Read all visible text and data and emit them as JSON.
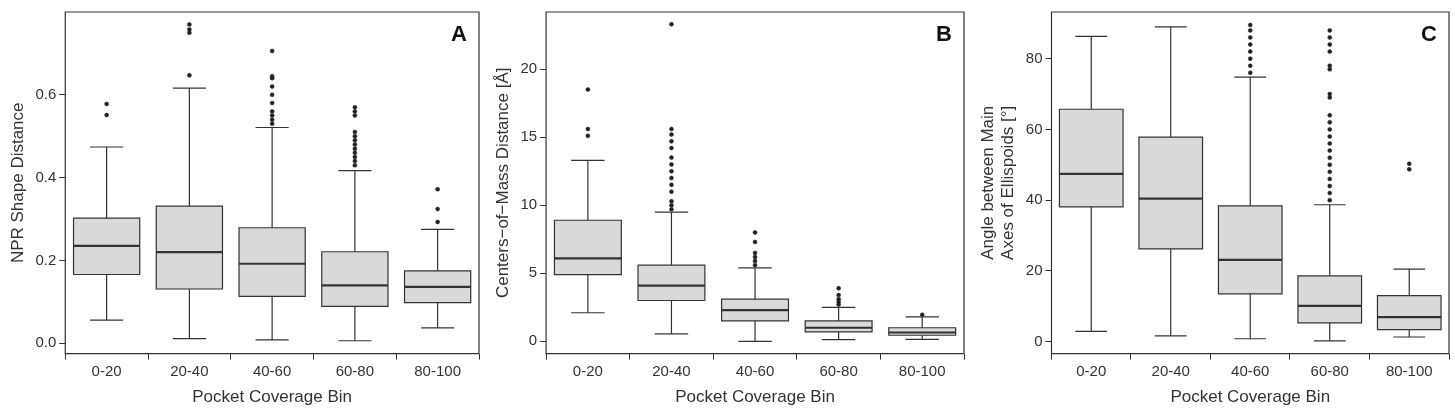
{
  "chart_data": [
    {
      "type": "box",
      "categories": [
        "0-20",
        "20-40",
        "40-60",
        "60-80",
        "80-100"
      ],
      "xlabel": "Pocket Coverage Bin",
      "ylabel": "NPR Shape Distance",
      "color": "#d9d9d9",
      "ylim": [
        -0.025,
        0.8
      ],
      "yticks": [
        {
          "value": 0,
          "label": "0.0"
        },
        0.2,
        0.4,
        0.6
      ],
      "annotations": [
        "A"
      ],
      "boxes": [
        {
          "low": 0.056,
          "q1": 0.166,
          "median": 0.235,
          "q3": 0.302,
          "high": 0.474,
          "outliers": [
            0.551,
            0.578
          ]
        },
        {
          "low": 0.011,
          "q1": 0.131,
          "median": 0.22,
          "q3": 0.331,
          "high": 0.616,
          "outliers": [
            0.647,
            0.75,
            0.758,
            0.77
          ]
        },
        {
          "low": 0.008,
          "q1": 0.113,
          "median": 0.192,
          "q3": 0.279,
          "high": 0.521,
          "outliers": [
            0.53,
            0.54,
            0.55,
            0.56,
            0.58,
            0.6,
            0.62,
            0.64,
            0.645,
            0.706
          ]
        },
        {
          "low": 0.006,
          "q1": 0.089,
          "median": 0.14,
          "q3": 0.221,
          "high": 0.417,
          "outliers": [
            0.43,
            0.44,
            0.45,
            0.46,
            0.47,
            0.48,
            0.49,
            0.5,
            0.51,
            0.55,
            0.56,
            0.57
          ]
        },
        {
          "low": 0.037,
          "q1": 0.098,
          "median": 0.136,
          "q3": 0.175,
          "high": 0.275,
          "outliers": [
            0.293,
            0.324,
            0.372
          ]
        }
      ]
    },
    {
      "type": "box",
      "categories": [
        "0-20",
        "20-40",
        "40-60",
        "60-80",
        "80-100"
      ],
      "xlabel": "Pocket Coverage Bin",
      "ylabel": "Centers−of−Mass Distance [Å]",
      "color": "#d9d9d9",
      "ylim": [
        -0.9,
        24.2
      ],
      "yticks": [
        0,
        5,
        10,
        15,
        20
      ],
      "annotations": [
        "B"
      ],
      "boxes": [
        {
          "low": 2.1,
          "q1": 4.9,
          "median": 6.1,
          "q3": 8.9,
          "high": 13.3,
          "outliers": [
            15.1,
            15.6,
            18.5
          ]
        },
        {
          "low": 0.55,
          "q1": 3.0,
          "median": 4.1,
          "q3": 5.6,
          "high": 9.5,
          "outliers": [
            9.7,
            10.0,
            10.3,
            11.0,
            11.5,
            12.0,
            12.5,
            13.0,
            13.5,
            14.2,
            14.7,
            15.2,
            15.6,
            23.3
          ]
        },
        {
          "low": 0.0,
          "q1": 1.5,
          "median": 2.3,
          "q3": 3.1,
          "high": 5.4,
          "outliers": [
            5.6,
            5.9,
            6.2,
            6.5,
            7.3,
            8.0
          ]
        },
        {
          "low": 0.13,
          "q1": 0.7,
          "median": 1.0,
          "q3": 1.5,
          "high": 2.5,
          "outliers": [
            2.7,
            2.9,
            3.1,
            3.4,
            3.9
          ]
        },
        {
          "low": 0.15,
          "q1": 0.45,
          "median": 0.65,
          "q3": 1.0,
          "high": 1.8,
          "outliers": [
            1.95
          ]
        }
      ]
    },
    {
      "type": "box",
      "categories": [
        "0-20",
        "20-40",
        "40-60",
        "60-80",
        "80-100"
      ],
      "xlabel": "Pocket Coverage Bin",
      "ylabel": "Angle between Main\nAxes of Ellispoids [°]",
      "color": "#d9d9d9",
      "ylim": [
        -3.4,
        93.2
      ],
      "yticks": [
        0,
        20,
        40,
        60,
        80
      ],
      "annotations": [
        "C"
      ],
      "boxes": [
        {
          "low": 2.9,
          "q1": 38.1,
          "median": 47.4,
          "q3": 65.7,
          "high": 86.3
        },
        {
          "low": 1.6,
          "q1": 26.2,
          "median": 40.4,
          "q3": 57.8,
          "high": 89.0
        },
        {
          "low": 0.8,
          "q1": 13.5,
          "median": 23.1,
          "q3": 38.4,
          "high": 74.8,
          "outliers": [
            76,
            78,
            80,
            82,
            84,
            86,
            88,
            89.5
          ]
        },
        {
          "low": 0.2,
          "q1": 5.3,
          "median": 10.1,
          "q3": 18.6,
          "high": 38.7,
          "outliers": [
            40,
            42,
            44,
            46,
            48,
            50,
            52,
            54,
            56,
            58,
            60,
            62,
            64,
            69,
            70,
            77,
            78,
            82,
            84,
            86,
            88
          ]
        },
        {
          "low": 1.3,
          "q1": 3.4,
          "median": 6.9,
          "q3": 13.0,
          "high": 20.5,
          "outliers": [
            48.7,
            50.3
          ]
        }
      ]
    }
  ]
}
